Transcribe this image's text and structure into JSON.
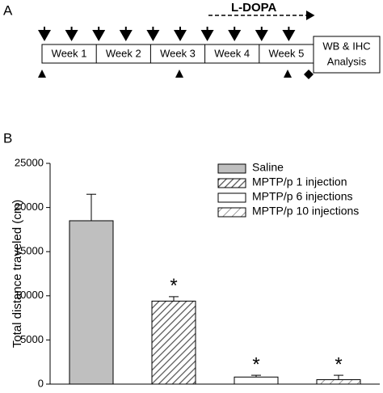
{
  "panel_a": {
    "label": "A",
    "treatment": "L-DOPA",
    "weeks": [
      "Week 1",
      "Week 2",
      "Week 3",
      "Week 4",
      "Week 5"
    ],
    "analysis": [
      "WB & IHC",
      "Analysis"
    ]
  },
  "chart_data": {
    "type": "bar",
    "panel_label": "B",
    "y_label": "Total distance traveled (cm)",
    "categories": [
      "Saline",
      "MPTP/p 1 injection",
      "MPTP/p 6 injections",
      "MPTP/p 10 injections"
    ],
    "values": [
      18500,
      9400,
      800,
      500
    ],
    "errors": [
      3000,
      500,
      200,
      500
    ],
    "colors": [
      "#bfbfbf",
      "#ffffff",
      "#ffffff",
      "#ffffff"
    ],
    "patterns": [
      "solid",
      "hatch",
      "solid",
      "hatch-sparse"
    ],
    "markers": [
      null,
      "*",
      "*",
      "*"
    ],
    "ylim": [
      0,
      25000
    ],
    "yticks": [
      0,
      5000,
      10000,
      15000,
      20000,
      25000
    ],
    "legend": "top-right"
  }
}
